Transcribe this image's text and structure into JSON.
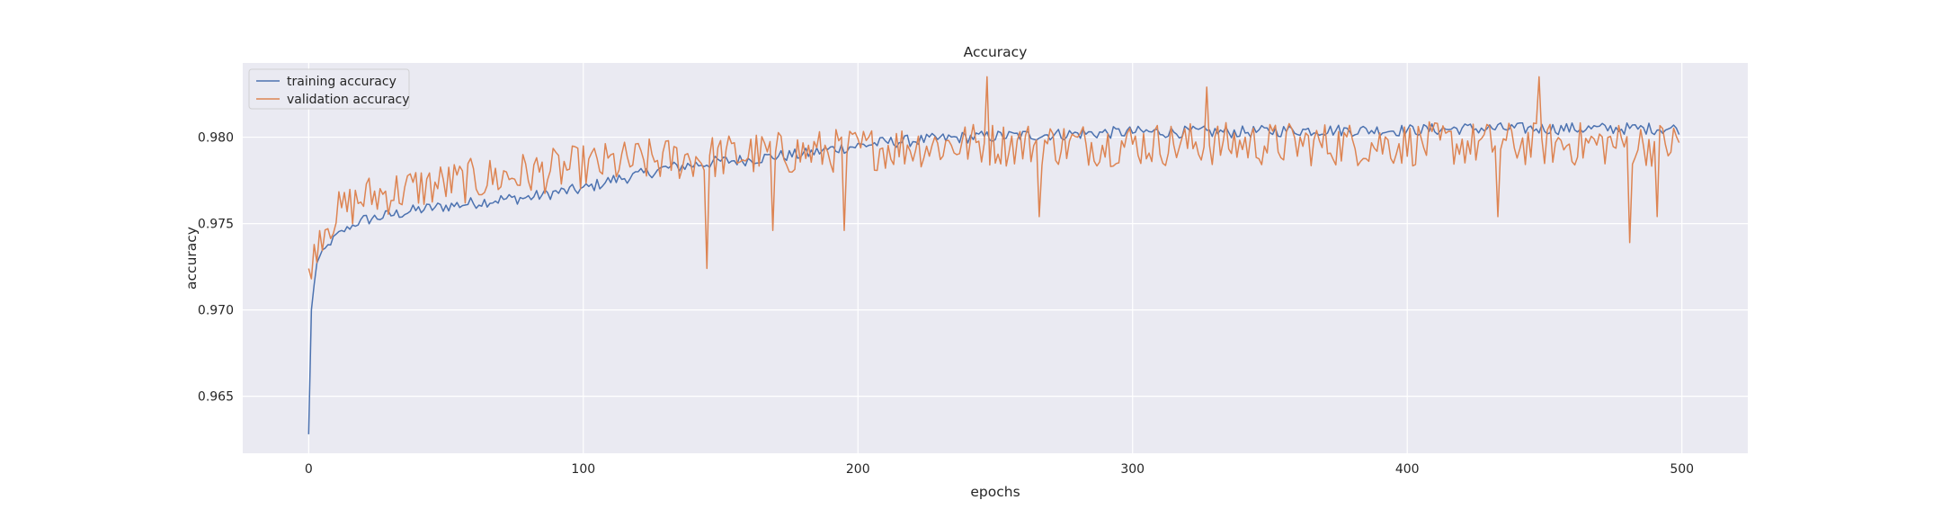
{
  "chart_data": {
    "type": "line",
    "title": "Accuracy",
    "xlabel": "epochs",
    "ylabel": "accuracy",
    "xlim": [
      -24,
      524
    ],
    "ylim": [
      0.9617,
      0.9843
    ],
    "xticks": [
      0,
      100,
      200,
      300,
      400,
      500
    ],
    "yticks": [
      0.965,
      0.97,
      0.975,
      0.98
    ],
    "ytick_labels": [
      "0.965",
      "0.970",
      "0.975",
      "0.980"
    ],
    "grid": true,
    "legend_position": "upper-left",
    "background_color": "#eaeaf2",
    "grid_color": "#ffffff",
    "series": [
      {
        "name": "training accuracy",
        "color": "#4c72b0",
        "points": [
          [
            0,
            0.9628
          ],
          [
            1,
            0.97
          ],
          [
            3,
            0.9728
          ],
          [
            6,
            0.9735
          ],
          [
            10,
            0.9743
          ],
          [
            15,
            0.9748
          ],
          [
            20,
            0.9752
          ],
          [
            30,
            0.9755
          ],
          [
            40,
            0.9758
          ],
          [
            50,
            0.976
          ],
          [
            60,
            0.9762
          ],
          [
            70,
            0.9764
          ],
          [
            80,
            0.9765
          ],
          [
            90,
            0.9768
          ],
          [
            100,
            0.977
          ],
          [
            110,
            0.9775
          ],
          [
            120,
            0.9778
          ],
          [
            130,
            0.9782
          ],
          [
            140,
            0.9784
          ],
          [
            150,
            0.9786
          ],
          [
            160,
            0.9787
          ],
          [
            170,
            0.9789
          ],
          [
            180,
            0.979
          ],
          [
            190,
            0.9793
          ],
          [
            200,
            0.9795
          ],
          [
            210,
            0.9797
          ],
          [
            220,
            0.9798
          ],
          [
            240,
            0.98
          ],
          [
            260,
            0.9801
          ],
          [
            280,
            0.9802
          ],
          [
            300,
            0.9803
          ],
          [
            320,
            0.9803
          ],
          [
            340,
            0.9803
          ],
          [
            360,
            0.9804
          ],
          [
            380,
            0.9804
          ],
          [
            400,
            0.9804
          ],
          [
            420,
            0.9805
          ],
          [
            440,
            0.9805
          ],
          [
            460,
            0.9805
          ],
          [
            480,
            0.9805
          ],
          [
            499,
            0.9805
          ]
        ],
        "noise": 0.00035
      },
      {
        "name": "validation accuracy",
        "color": "#dd8452",
        "points": [
          [
            0,
            0.9724
          ],
          [
            1,
            0.9718
          ],
          [
            3,
            0.974
          ],
          [
            6,
            0.975
          ],
          [
            10,
            0.9755
          ],
          [
            20,
            0.9765
          ],
          [
            30,
            0.9768
          ],
          [
            40,
            0.9771
          ],
          [
            50,
            0.9773
          ],
          [
            60,
            0.9775
          ],
          [
            70,
            0.9777
          ],
          [
            80,
            0.9779
          ],
          [
            90,
            0.9781
          ],
          [
            100,
            0.9783
          ],
          [
            120,
            0.9786
          ],
          [
            140,
            0.9788
          ],
          [
            160,
            0.979
          ],
          [
            180,
            0.9791
          ],
          [
            200,
            0.9793
          ],
          [
            220,
            0.9795
          ],
          [
            240,
            0.9796
          ],
          [
            260,
            0.9796
          ],
          [
            300,
            0.9796
          ],
          [
            340,
            0.9796
          ],
          [
            380,
            0.9796
          ],
          [
            420,
            0.9796
          ],
          [
            460,
            0.9796
          ],
          [
            499,
            0.9796
          ]
        ],
        "noise": 0.0013,
        "spikes": [
          [
            145,
            0.9724
          ],
          [
            169,
            0.9746
          ],
          [
            195,
            0.9746
          ],
          [
            247,
            0.9835
          ],
          [
            266,
            0.9754
          ],
          [
            327,
            0.9829
          ],
          [
            433,
            0.9754
          ],
          [
            448,
            0.9835
          ],
          [
            481,
            0.9739
          ],
          [
            491,
            0.9754
          ]
        ]
      }
    ]
  }
}
